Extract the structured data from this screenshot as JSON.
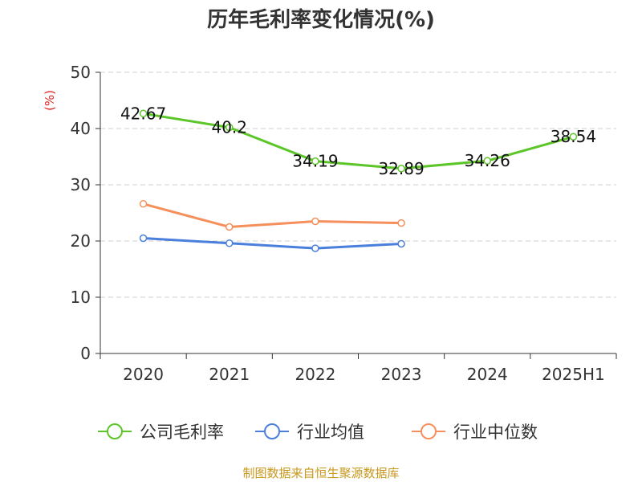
{
  "chart_data": {
    "type": "line",
    "title": "历年毛利率变化情况(%)",
    "ylabel": "(%)",
    "ylim": [
      0,
      50
    ],
    "yticks": [
      0,
      10,
      20,
      30,
      40,
      50
    ],
    "categories": [
      "2020",
      "2021",
      "2022",
      "2023",
      "2024",
      "2025H1"
    ],
    "grid": true,
    "legend_position": "bottom",
    "series": [
      {
        "name": "公司毛利率",
        "color": "#5cc628",
        "values": [
          42.67,
          40.2,
          34.19,
          32.89,
          34.26,
          38.54
        ],
        "labels": [
          "42.67",
          "40.2",
          "34.19",
          "32.89",
          "34.26",
          "38.54"
        ]
      },
      {
        "name": "行业均值",
        "color": "#4a7fdc",
        "values": [
          20.5,
          19.6,
          18.7,
          19.5,
          null,
          null
        ]
      },
      {
        "name": "行业中位数",
        "color": "#f5905c",
        "values": [
          26.6,
          22.5,
          23.5,
          23.2,
          null,
          null
        ]
      }
    ]
  },
  "source": "制图数据来自恒生聚源数据库"
}
